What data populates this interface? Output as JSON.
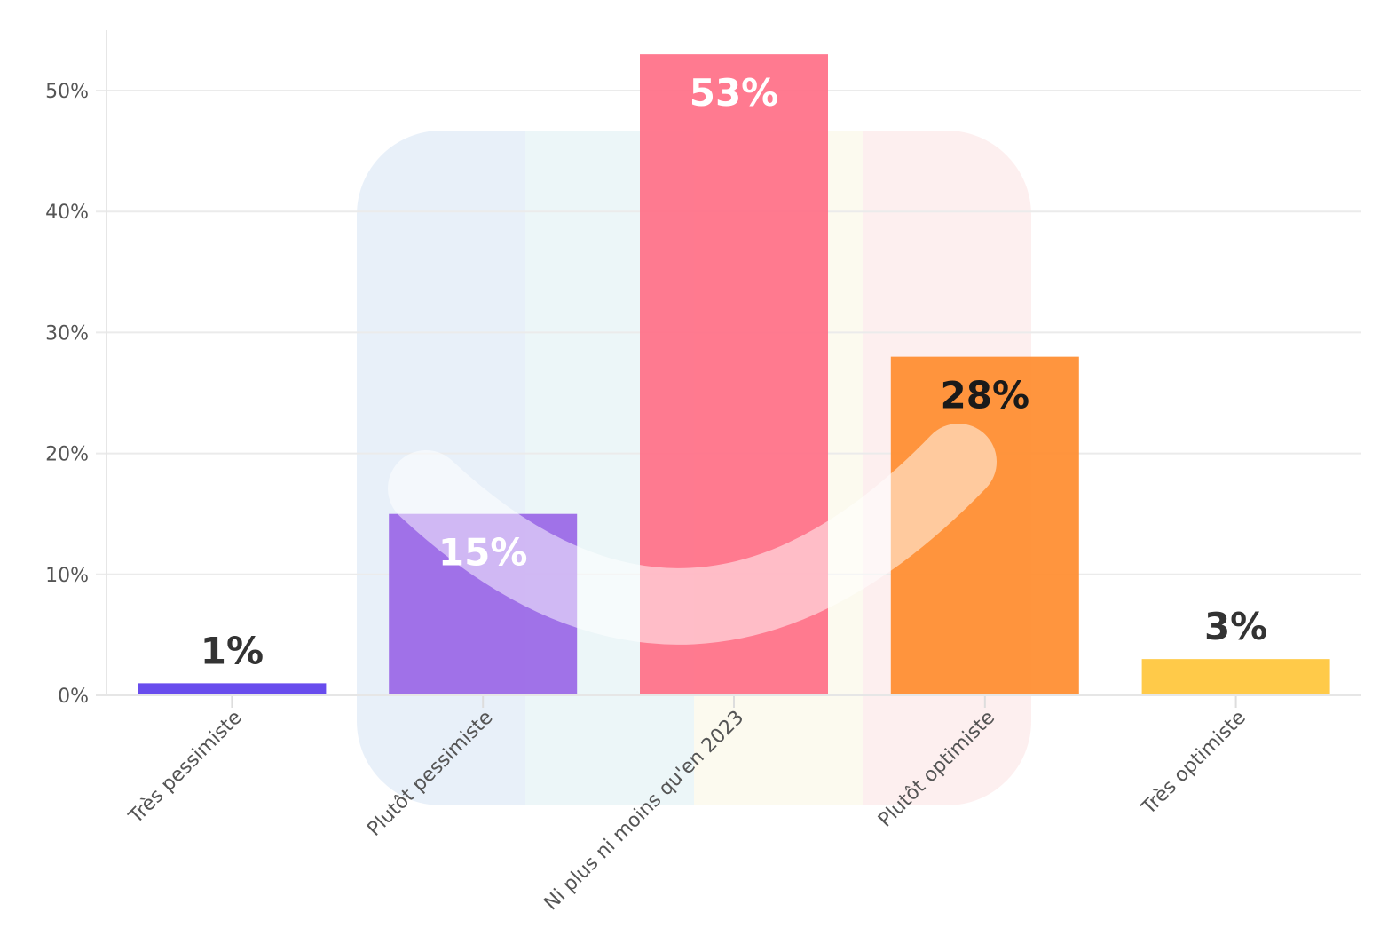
{
  "chart_data": {
    "type": "bar",
    "categories": [
      "Très pessimiste",
      "Plutôt pessimiste",
      "Ni plus ni moins qu'en 2023",
      "Plutôt optimiste",
      "Très optimiste"
    ],
    "values": [
      1,
      15,
      53,
      28,
      3
    ],
    "data_labels": [
      "1%",
      "15%",
      "53%",
      "28%",
      "3%"
    ],
    "colors": [
      "#5b3deb",
      "#9966e6",
      "#ff6f87",
      "#ff8c2e",
      "#ffc53a"
    ],
    "label_colors": [
      "#333333",
      "#ffffff",
      "#ffffff",
      "#1a1a1a",
      "#333333"
    ],
    "label_inside": [
      false,
      true,
      true,
      true,
      false
    ],
    "yticks": [
      0,
      10,
      20,
      30,
      40,
      50
    ],
    "ytick_labels": [
      "0%",
      "10%",
      "20%",
      "30%",
      "40%",
      "50%"
    ],
    "ylim": [
      0,
      55
    ],
    "grid": true,
    "title": "",
    "xlabel": "",
    "ylabel": ""
  }
}
